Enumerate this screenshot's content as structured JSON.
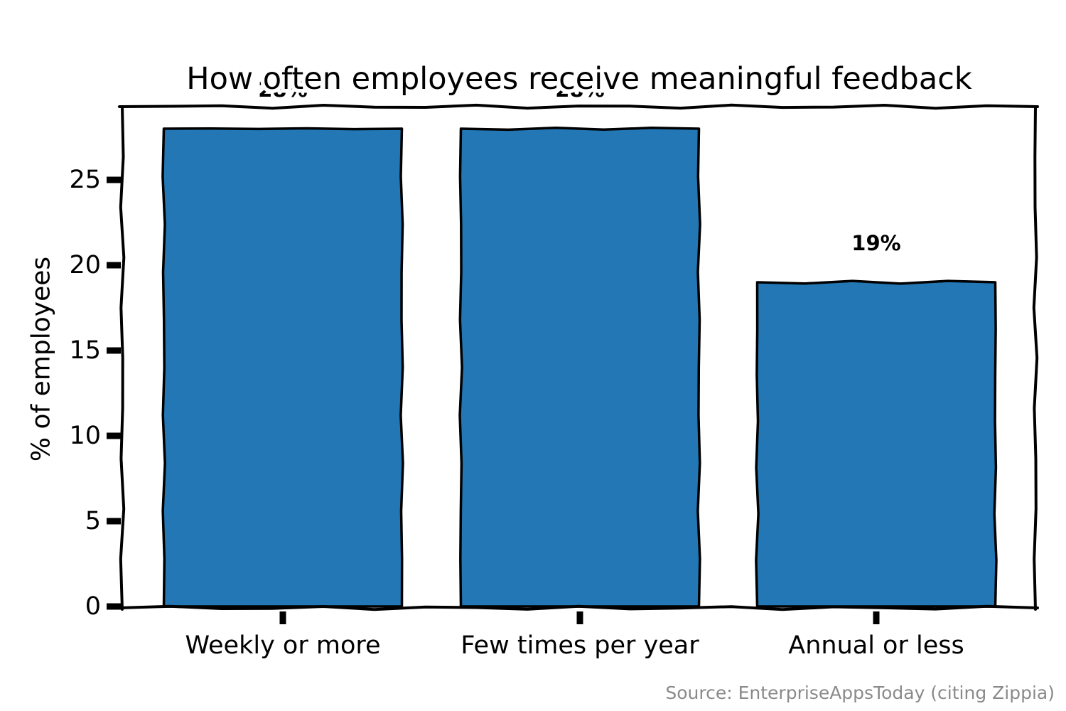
{
  "source_note": "Source: EnterpriseAppsToday (citing Zippia)",
  "colors": {
    "bar_fill": "#2277b4",
    "line": "#000000",
    "text": "#000000",
    "source_text": "#8a8a8a",
    "background": "#ffffff"
  },
  "chart_data": {
    "type": "bar",
    "style": "xkcd-hand-drawn",
    "title": "How often employees receive meaningful feedback",
    "categories": [
      "Weekly or more",
      "Few times per year",
      "Annual or less"
    ],
    "values": [
      28,
      28,
      19
    ],
    "bar_labels": [
      "28%",
      "28%",
      "19%"
    ],
    "bar_label_note": "28% labels of first two bars are mostly hidden behind the title's white outline",
    "xlabel": "",
    "ylabel": "% of employees",
    "yticks": [
      0,
      5,
      10,
      15,
      20,
      25
    ],
    "ylim": [
      0,
      29.3
    ],
    "grid": false,
    "legend": "none"
  }
}
